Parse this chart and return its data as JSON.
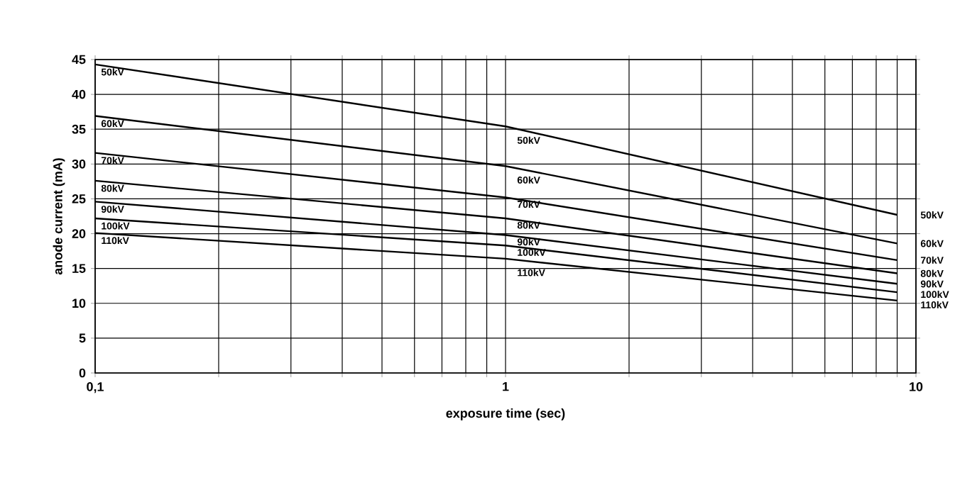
{
  "chart_data": {
    "type": "line",
    "xlabel": "exposure time   (sec)",
    "ylabel": "anode current   (mA)",
    "log": "x",
    "xlim": [
      0.1,
      10
    ],
    "xticks": [
      {
        "value": 0.1,
        "label": "0,1"
      },
      1,
      10
    ],
    "ylim": [
      0,
      45
    ],
    "yticks": [
      0,
      5,
      10,
      15,
      20,
      25,
      30,
      35,
      40,
      45
    ],
    "grid": true,
    "x": [
      0.1,
      1,
      9
    ],
    "series": [
      {
        "name": "50kV",
        "color": "#000000",
        "values": [
          44.3,
          35.4,
          22.7
        ]
      },
      {
        "name": "60kV",
        "color": "#000000",
        "values": [
          36.9,
          29.7,
          18.6
        ]
      },
      {
        "name": "70kV",
        "color": "#000000",
        "values": [
          31.6,
          25.2,
          16.2
        ]
      },
      {
        "name": "80kV",
        "color": "#000000",
        "values": [
          27.6,
          22.2,
          14.3
        ]
      },
      {
        "name": "90kV",
        "color": "#000000",
        "values": [
          24.6,
          19.8,
          12.8
        ]
      },
      {
        "name": "100kV",
        "color": "#000000",
        "values": [
          22.2,
          18.3,
          11.6
        ]
      },
      {
        "name": "110kV",
        "color": "#000000",
        "values": [
          20.1,
          16.4,
          10.4
        ]
      }
    ],
    "annotations": [
      "50kV",
      "60kV",
      "70kV",
      "80kV",
      "90kV",
      "100kV",
      "110kV",
      "50kV",
      "60kV",
      "70kV",
      "80kV",
      "90kV",
      "100kV",
      "110kV"
    ]
  }
}
